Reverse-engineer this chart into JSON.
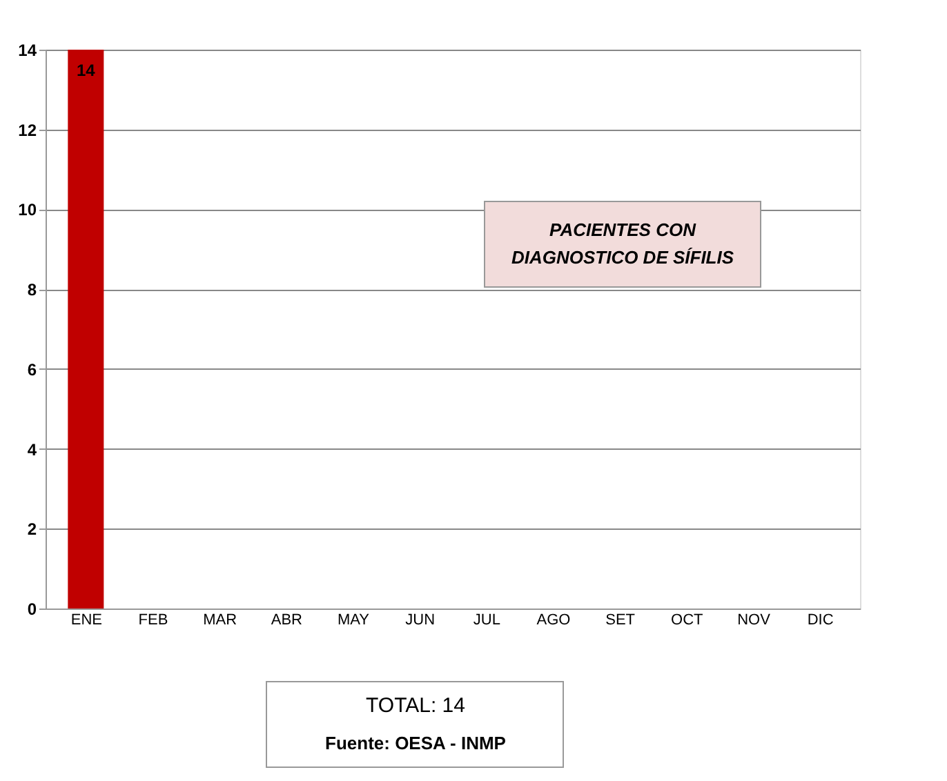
{
  "chart_data": {
    "type": "bar",
    "title": "PACIENTES CON DIAGNOSTICO DE SÍFILIS",
    "categories": [
      "ENE",
      "FEB",
      "MAR",
      "ABR",
      "MAY",
      "JUN",
      "JUL",
      "AGO",
      "SET",
      "OCT",
      "NOV",
      "DIC"
    ],
    "values": [
      14,
      0,
      0,
      0,
      0,
      0,
      0,
      0,
      0,
      0,
      0,
      0
    ],
    "value_labels": [
      "14",
      null,
      null,
      null,
      null,
      null,
      null,
      null,
      null,
      null,
      null,
      null
    ],
    "color": "#c00000",
    "ylim": [
      0,
      14
    ],
    "yticks": [
      0,
      2,
      4,
      6,
      8,
      10,
      12,
      14
    ],
    "grid": "y",
    "annotations": [
      "TOTAL: 14",
      "Fuente: OESA - INMP"
    ]
  }
}
